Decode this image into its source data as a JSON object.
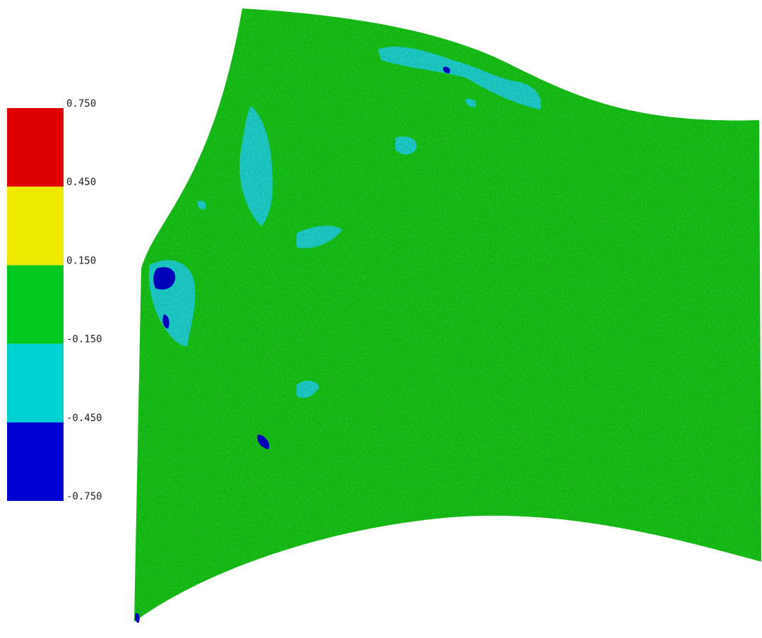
{
  "legend": {
    "labels": [
      "0.750",
      "0.450",
      "0.150",
      "-0.150",
      "-0.450",
      "-0.750"
    ],
    "colors": [
      "#e00000",
      "#eeea00",
      "#00c81e",
      "#00d2d2",
      "#0000d2"
    ]
  }
}
